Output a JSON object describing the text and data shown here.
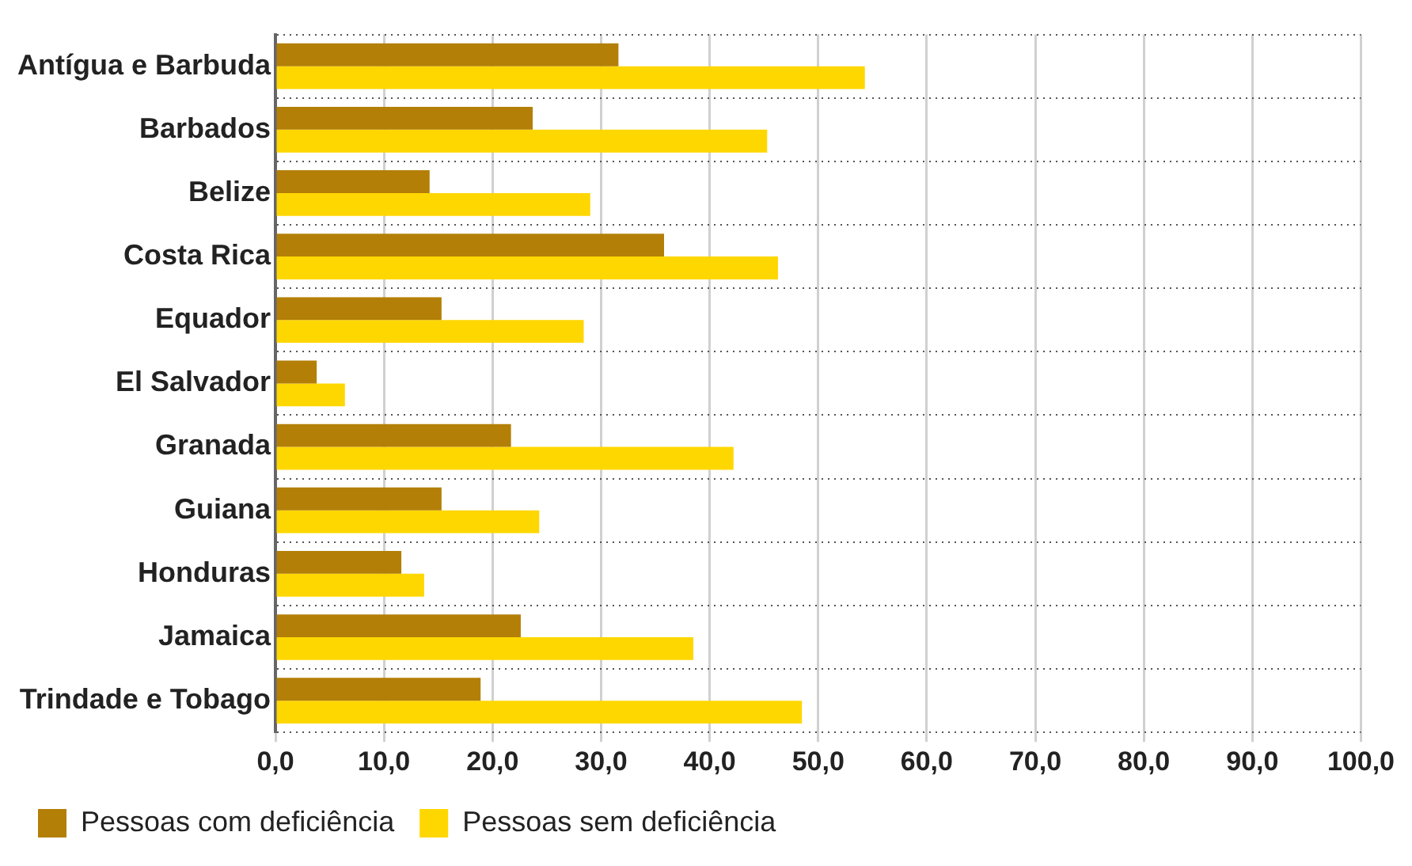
{
  "chart_data": {
    "type": "bar",
    "orientation": "horizontal",
    "categories": [
      "Antígua e Barbuda",
      "Barbados",
      "Belize",
      "Costa Rica",
      "Equador",
      "El Salvador",
      "Granada",
      "Guiana",
      "Honduras",
      "Jamaica",
      "Trindade e Tobago"
    ],
    "series": [
      {
        "name": "Pessoas com deficiência",
        "color": "#b37f07",
        "values": [
          31.6,
          23.7,
          14.2,
          35.8,
          15.3,
          3.8,
          21.7,
          15.3,
          11.6,
          22.6,
          18.9
        ]
      },
      {
        "name": "Pessoas sem deficiência",
        "color": "#ffd700",
        "values": [
          54.3,
          45.3,
          29.0,
          46.3,
          28.4,
          6.4,
          42.2,
          24.3,
          13.7,
          38.5,
          48.5
        ]
      }
    ],
    "xlim": [
      0,
      100
    ],
    "xticks": [
      {
        "value": 0,
        "label": "0,0"
      },
      {
        "value": 10,
        "label": "10,0"
      },
      {
        "value": 20,
        "label": "20,0"
      },
      {
        "value": 30,
        "label": "30,0"
      },
      {
        "value": 40,
        "label": "40,0"
      },
      {
        "value": 50,
        "label": "50,0"
      },
      {
        "value": 60,
        "label": "60,0"
      },
      {
        "value": 70,
        "label": "70,0"
      },
      {
        "value": 80,
        "label": "80,0"
      },
      {
        "value": 90,
        "label": "90,0"
      },
      {
        "value": 100,
        "label": "100,0"
      }
    ],
    "grid": true,
    "legend": "bottom left"
  }
}
